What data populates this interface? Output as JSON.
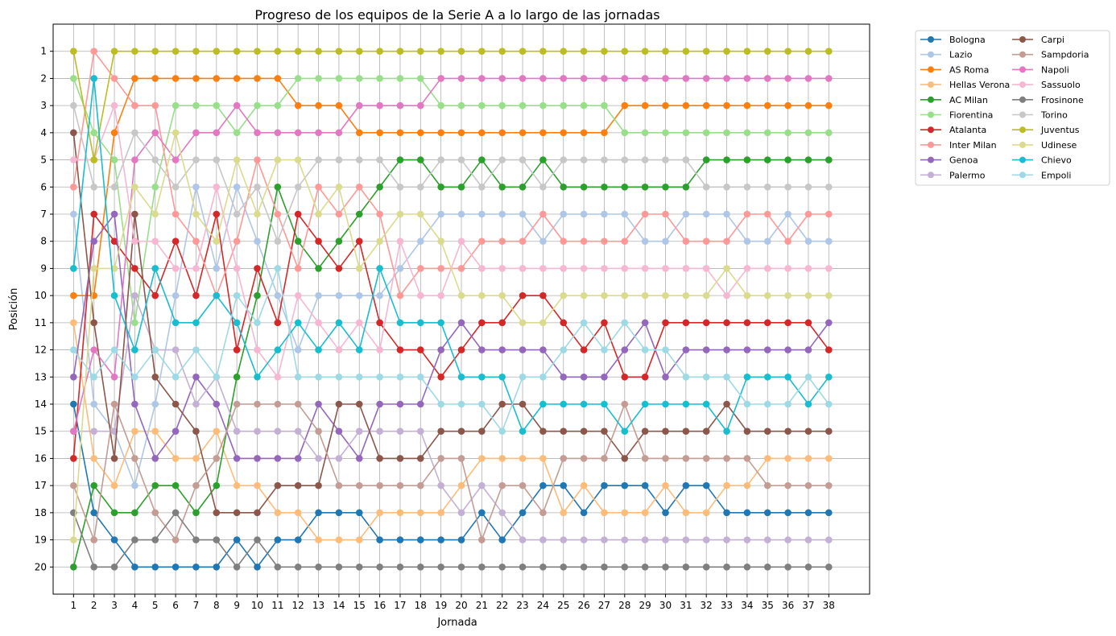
{
  "chart_data": {
    "type": "line",
    "title": "Progreso de los equipos de la Serie A a lo largo de las jornadas",
    "xlabel": "Jornada",
    "ylabel": "Posición",
    "x": [
      1,
      2,
      3,
      4,
      5,
      6,
      7,
      8,
      9,
      10,
      11,
      12,
      13,
      14,
      15,
      16,
      17,
      18,
      19,
      20,
      21,
      22,
      23,
      24,
      25,
      26,
      27,
      28,
      29,
      30,
      31,
      32,
      33,
      34,
      35,
      36,
      37,
      38
    ],
    "xlim": [
      0.0,
      40.0
    ],
    "ylim": [
      21,
      0
    ],
    "y_inverted": true,
    "yticks": [
      1,
      2,
      3,
      4,
      5,
      6,
      7,
      8,
      9,
      10,
      11,
      12,
      13,
      14,
      15,
      16,
      17,
      18,
      19,
      20
    ],
    "grid": true,
    "legend_location": "outside-right",
    "legend_columns": 2,
    "series": [
      {
        "name": "Bologna",
        "color": "#1f77b4",
        "values": [
          14,
          18,
          19,
          20,
          20,
          20,
          20,
          20,
          19,
          20,
          19,
          19,
          18,
          18,
          18,
          19,
          19,
          19,
          19,
          19,
          18,
          19,
          18,
          17,
          17,
          18,
          17,
          17,
          17,
          18,
          17,
          17,
          18,
          18,
          18,
          18,
          18,
          18
        ]
      },
      {
        "name": "Lazio",
        "color": "#aec7e8",
        "values": [
          7,
          14,
          15,
          17,
          14,
          10,
          6,
          9,
          6,
          8,
          10,
          12,
          10,
          10,
          10,
          10,
          9,
          8,
          7,
          7,
          7,
          7,
          7,
          8,
          7,
          7,
          7,
          7,
          8,
          8,
          7,
          7,
          7,
          8,
          8,
          7,
          8,
          8
        ]
      },
      {
        "name": "AS Roma",
        "color": "#ff7f0e",
        "values": [
          10,
          10,
          4,
          2,
          2,
          2,
          2,
          2,
          2,
          2,
          2,
          3,
          3,
          3,
          4,
          4,
          4,
          4,
          4,
          4,
          4,
          4,
          4,
          4,
          4,
          4,
          4,
          3,
          3,
          3,
          3,
          3,
          3,
          3,
          3,
          3,
          3,
          3
        ]
      },
      {
        "name": "Hellas Verona",
        "color": "#ffbb78",
        "values": [
          11,
          16,
          17,
          15,
          15,
          16,
          16,
          15,
          17,
          17,
          18,
          18,
          19,
          19,
          19,
          18,
          18,
          18,
          18,
          17,
          16,
          16,
          16,
          16,
          18,
          17,
          18,
          18,
          18,
          17,
          18,
          18,
          17,
          17,
          16,
          16,
          16,
          16
        ]
      },
      {
        "name": "AC Milan",
        "color": "#2ca02c",
        "values": [
          20,
          17,
          18,
          18,
          17,
          17,
          18,
          17,
          13,
          10,
          6,
          8,
          9,
          8,
          7,
          6,
          5,
          5,
          6,
          6,
          5,
          6,
          6,
          5,
          6,
          6,
          6,
          6,
          6,
          6,
          6,
          5,
          5,
          5,
          5,
          5,
          5,
          5
        ]
      },
      {
        "name": "Fiorentina",
        "color": "#98df8a",
        "values": [
          2,
          4,
          5,
          11,
          6,
          3,
          3,
          3,
          4,
          3,
          3,
          2,
          2,
          2,
          2,
          2,
          2,
          2,
          3,
          3,
          3,
          3,
          3,
          3,
          3,
          3,
          3,
          4,
          4,
          4,
          4,
          4,
          4,
          4,
          4,
          4,
          4,
          4
        ]
      },
      {
        "name": "Atalanta",
        "color": "#d62728",
        "values": [
          16,
          7,
          8,
          9,
          10,
          8,
          10,
          7,
          12,
          9,
          11,
          7,
          8,
          9,
          8,
          11,
          12,
          12,
          13,
          12,
          11,
          11,
          10,
          10,
          11,
          12,
          11,
          13,
          13,
          11,
          11,
          11,
          11,
          11,
          11,
          11,
          11,
          12
        ]
      },
      {
        "name": "Inter Milan",
        "color": "#ff9896",
        "values": [
          6,
          1,
          2,
          3,
          3,
          7,
          8,
          10,
          8,
          5,
          7,
          9,
          6,
          7,
          6,
          7,
          10,
          9,
          9,
          9,
          8,
          8,
          8,
          7,
          8,
          8,
          8,
          8,
          7,
          7,
          8,
          8,
          8,
          7,
          7,
          8,
          7,
          7
        ]
      },
      {
        "name": "Genoa",
        "color": "#9467bd",
        "values": [
          13,
          8,
          7,
          14,
          16,
          15,
          13,
          14,
          16,
          16,
          16,
          16,
          14,
          15,
          16,
          14,
          14,
          14,
          12,
          11,
          12,
          12,
          12,
          12,
          13,
          13,
          13,
          12,
          11,
          13,
          12,
          12,
          12,
          12,
          12,
          12,
          12,
          11
        ]
      },
      {
        "name": "Palermo",
        "color": "#c5b0d5",
        "values": [
          15,
          15,
          15,
          10,
          12,
          12,
          14,
          13,
          15,
          15,
          15,
          15,
          16,
          16,
          15,
          15,
          15,
          15,
          17,
          18,
          17,
          18,
          19,
          19,
          19,
          19,
          19,
          19,
          19,
          19,
          19,
          19,
          19,
          19,
          19,
          19,
          19,
          19
        ]
      },
      {
        "name": "Carpi",
        "color": "#8c564b",
        "values": [
          4,
          11,
          16,
          7,
          13,
          14,
          15,
          18,
          18,
          18,
          17,
          17,
          17,
          14,
          14,
          16,
          16,
          16,
          15,
          15,
          15,
          14,
          14,
          15,
          15,
          15,
          15,
          16,
          15,
          15,
          15,
          15,
          14,
          15,
          15,
          15,
          15,
          15
        ]
      },
      {
        "name": "Sampdoria",
        "color": "#c49c94",
        "values": [
          17,
          19,
          14,
          16,
          18,
          19,
          17,
          16,
          14,
          14,
          14,
          14,
          15,
          17,
          17,
          17,
          17,
          17,
          16,
          16,
          19,
          17,
          17,
          18,
          16,
          16,
          16,
          14,
          16,
          16,
          16,
          16,
          16,
          16,
          17,
          17,
          17,
          17
        ]
      },
      {
        "name": "Napoli",
        "color": "#e377c2",
        "values": [
          15,
          12,
          13,
          5,
          4,
          5,
          4,
          4,
          3,
          4,
          4,
          4,
          4,
          4,
          3,
          3,
          3,
          3,
          2,
          2,
          2,
          2,
          2,
          2,
          2,
          2,
          2,
          2,
          2,
          2,
          2,
          2,
          2,
          2,
          2,
          2,
          2,
          2
        ]
      },
      {
        "name": "Sassuolo",
        "color": "#f7b6d2",
        "values": [
          5,
          5,
          3,
          8,
          8,
          9,
          9,
          6,
          9,
          12,
          13,
          10,
          11,
          12,
          11,
          12,
          8,
          10,
          10,
          8,
          9,
          9,
          9,
          9,
          9,
          9,
          9,
          9,
          9,
          9,
          9,
          9,
          10,
          9,
          9,
          9,
          9,
          9
        ]
      },
      {
        "name": "Frosinone",
        "color": "#7f7f7f",
        "values": [
          18,
          20,
          20,
          19,
          19,
          18,
          19,
          19,
          20,
          19,
          20,
          20,
          20,
          20,
          20,
          20,
          20,
          20,
          20,
          20,
          20,
          20,
          20,
          20,
          20,
          20,
          20,
          20,
          20,
          20,
          20,
          20,
          20,
          20,
          20,
          20,
          20,
          20
        ]
      },
      {
        "name": "Torino",
        "color": "#c7c7c7",
        "values": [
          3,
          6,
          6,
          4,
          5,
          6,
          5,
          5,
          7,
          6,
          8,
          6,
          5,
          5,
          5,
          5,
          6,
          6,
          5,
          5,
          6,
          5,
          5,
          6,
          5,
          5,
          5,
          5,
          5,
          5,
          5,
          6,
          6,
          6,
          6,
          6,
          6,
          6
        ]
      },
      {
        "name": "Juventus",
        "color": "#bcbd22",
        "values": [
          1,
          5,
          1,
          1,
          1,
          1,
          1,
          1,
          1,
          1,
          1,
          1,
          1,
          1,
          1,
          1,
          1,
          1,
          1,
          1,
          1,
          1,
          1,
          1,
          1,
          1,
          1,
          1,
          1,
          1,
          1,
          1,
          1,
          1,
          1,
          1,
          1,
          1
        ]
      },
      {
        "name": "Udinese",
        "color": "#dbdb8d",
        "values": [
          19,
          9,
          9,
          6,
          7,
          4,
          7,
          8,
          5,
          7,
          5,
          5,
          7,
          6,
          9,
          8,
          7,
          7,
          8,
          10,
          10,
          10,
          11,
          11,
          10,
          10,
          10,
          10,
          10,
          10,
          10,
          10,
          9,
          10,
          10,
          10,
          10,
          10
        ]
      },
      {
        "name": "Chievo",
        "color": "#17becf",
        "values": [
          9,
          2,
          10,
          12,
          9,
          11,
          11,
          10,
          11,
          13,
          12,
          11,
          12,
          11,
          12,
          9,
          11,
          11,
          11,
          13,
          13,
          13,
          15,
          14,
          14,
          14,
          14,
          15,
          14,
          14,
          14,
          14,
          15,
          13,
          13,
          13,
          14,
          13
        ]
      },
      {
        "name": "Empoli",
        "color": "#9edae5",
        "values": [
          12,
          13,
          12,
          13,
          12,
          13,
          12,
          13,
          10,
          11,
          9,
          13,
          13,
          13,
          13,
          13,
          13,
          13,
          14,
          14,
          14,
          15,
          13,
          13,
          12,
          11,
          12,
          11,
          12,
          12,
          13,
          13,
          13,
          14,
          14,
          14,
          13,
          14
        ]
      }
    ]
  }
}
